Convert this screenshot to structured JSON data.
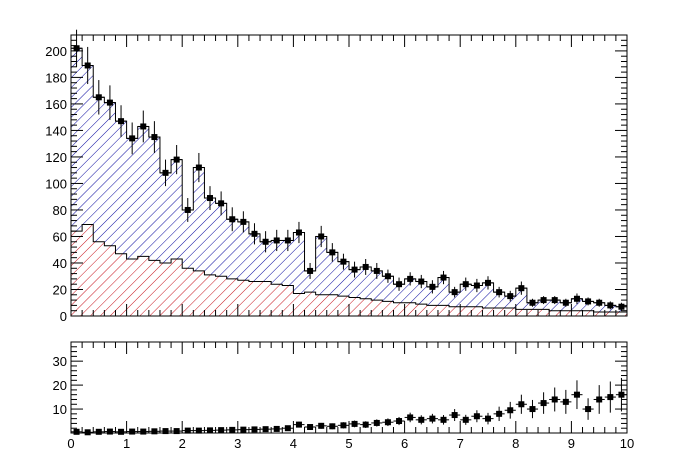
{
  "chart_data": [
    {
      "type": "stacked-histogram",
      "title": "",
      "xlabel": "",
      "ylabel": "",
      "xlim": [
        0,
        10
      ],
      "ylim": [
        0,
        212
      ],
      "yticks": [
        "0",
        "20",
        "40",
        "60",
        "80",
        "100",
        "120",
        "140",
        "160",
        "180",
        "200"
      ],
      "bin_width": 0.2,
      "x": [
        0.1,
        0.3,
        0.5,
        0.7,
        0.9,
        1.1,
        1.3,
        1.5,
        1.7,
        1.9,
        2.1,
        2.3,
        2.5,
        2.7,
        2.9,
        3.1,
        3.3,
        3.5,
        3.7,
        3.9,
        4.1,
        4.3,
        4.5,
        4.7,
        4.9,
        5.1,
        5.3,
        5.5,
        5.7,
        5.9,
        6.1,
        6.3,
        6.5,
        6.7,
        6.9,
        7.1,
        7.3,
        7.5,
        7.7,
        7.9,
        8.1,
        8.3,
        8.5,
        8.7,
        8.9,
        9.1,
        9.3,
        9.5,
        9.7,
        9.9
      ],
      "series": [
        {
          "fill": "red-hatch",
          "color": "#c8141e",
          "values": [
            64,
            69,
            56,
            53,
            47,
            43,
            45,
            42,
            40,
            43,
            36,
            34,
            31,
            30,
            28,
            27,
            26,
            26,
            24,
            23,
            17,
            18,
            16,
            16,
            15,
            14,
            13,
            12,
            11,
            10,
            10,
            9,
            8,
            8,
            7,
            7,
            7,
            6,
            6,
            6,
            5,
            5,
            5,
            4,
            4,
            4,
            4,
            3,
            3,
            3
          ]
        },
        {
          "fill": "blue-hatch",
          "color": "#0a0aa0",
          "values": [
            138,
            120,
            109,
            108,
            100,
            91,
            98,
            93,
            68,
            75,
            44,
            78,
            58,
            55,
            45,
            44,
            36,
            30,
            33,
            34,
            46,
            16,
            44,
            32,
            26,
            21,
            24,
            22,
            19,
            14,
            18,
            17,
            14,
            21,
            11,
            17,
            16,
            19,
            12,
            9,
            16,
            5,
            7,
            8,
            6,
            9,
            7,
            7,
            5,
            4
          ]
        }
      ],
      "data_points": {
        "marker": "square",
        "y": [
          202,
          189,
          165,
          161,
          147,
          134,
          143,
          135,
          108,
          118,
          80,
          112,
          89,
          85,
          73,
          71,
          62,
          56,
          57,
          57,
          63,
          34,
          60,
          48,
          41,
          35,
          37,
          34,
          30,
          24,
          28,
          26,
          22,
          29,
          18,
          24,
          23,
          25,
          18,
          15,
          21,
          10,
          12,
          12,
          10,
          13,
          11,
          10,
          8,
          7
        ],
        "yerr": [
          14,
          14,
          13,
          13,
          12,
          12,
          12,
          12,
          10,
          11,
          9,
          11,
          9,
          9,
          9,
          8,
          8,
          8,
          8,
          8,
          8,
          6,
          8,
          7,
          6,
          6,
          6,
          6,
          5,
          5,
          5,
          5,
          5,
          5,
          4,
          5,
          5,
          5,
          4,
          4,
          5,
          3,
          3,
          3,
          3,
          4,
          3,
          3,
          3,
          3
        ]
      }
    },
    {
      "type": "scatter",
      "title": "",
      "xlabel": "",
      "ylabel": "",
      "xlim": [
        0,
        10
      ],
      "ylim": [
        0,
        38
      ],
      "xticks": [
        "0",
        "1",
        "2",
        "3",
        "4",
        "5",
        "6",
        "7",
        "8",
        "9",
        "10"
      ],
      "yticks": [
        "10",
        "20",
        "30"
      ],
      "x": [
        0.1,
        0.3,
        0.5,
        0.7,
        0.9,
        1.1,
        1.3,
        1.5,
        1.7,
        1.9,
        2.1,
        2.3,
        2.5,
        2.7,
        2.9,
        3.1,
        3.3,
        3.5,
        3.7,
        3.9,
        4.1,
        4.3,
        4.5,
        4.7,
        4.9,
        5.1,
        5.3,
        5.5,
        5.7,
        5.9,
        6.1,
        6.3,
        6.5,
        6.7,
        6.9,
        7.1,
        7.3,
        7.5,
        7.7,
        7.9,
        8.1,
        8.3,
        8.5,
        8.7,
        8.9,
        9.1,
        9.3,
        9.5,
        9.7,
        9.9
      ],
      "y": [
        0.5,
        0.3,
        0.5,
        0.6,
        0.5,
        0.6,
        0.6,
        0.7,
        0.8,
        0.8,
        1.0,
        1.0,
        1.1,
        1.2,
        1.3,
        1.4,
        1.5,
        1.6,
        1.7,
        2.0,
        3.5,
        2.5,
        3.0,
        2.8,
        3.2,
        3.8,
        3.5,
        4.2,
        4.5,
        5.0,
        6.5,
        5.5,
        6.0,
        5.5,
        7.5,
        5.5,
        7.0,
        6.0,
        8.0,
        9.5,
        12.0,
        10.0,
        12.5,
        14.0,
        13.0,
        16.0,
        10.0,
        14.0,
        15.0,
        16.0
      ],
      "yerr": [
        0.5,
        0.5,
        0.5,
        0.5,
        0.5,
        0.6,
        0.6,
        0.6,
        0.6,
        0.6,
        0.7,
        0.7,
        0.7,
        0.7,
        0.8,
        0.8,
        0.8,
        0.9,
        0.9,
        1.0,
        1.2,
        1.1,
        1.2,
        1.2,
        1.3,
        1.4,
        1.4,
        1.5,
        1.6,
        1.7,
        2.0,
        1.9,
        2.0,
        2.0,
        2.5,
        2.1,
        2.5,
        2.4,
        3.0,
        3.5,
        4.0,
        3.8,
        4.5,
        5.0,
        5.0,
        6.0,
        4.5,
        6.0,
        6.5,
        7.0
      ]
    }
  ]
}
